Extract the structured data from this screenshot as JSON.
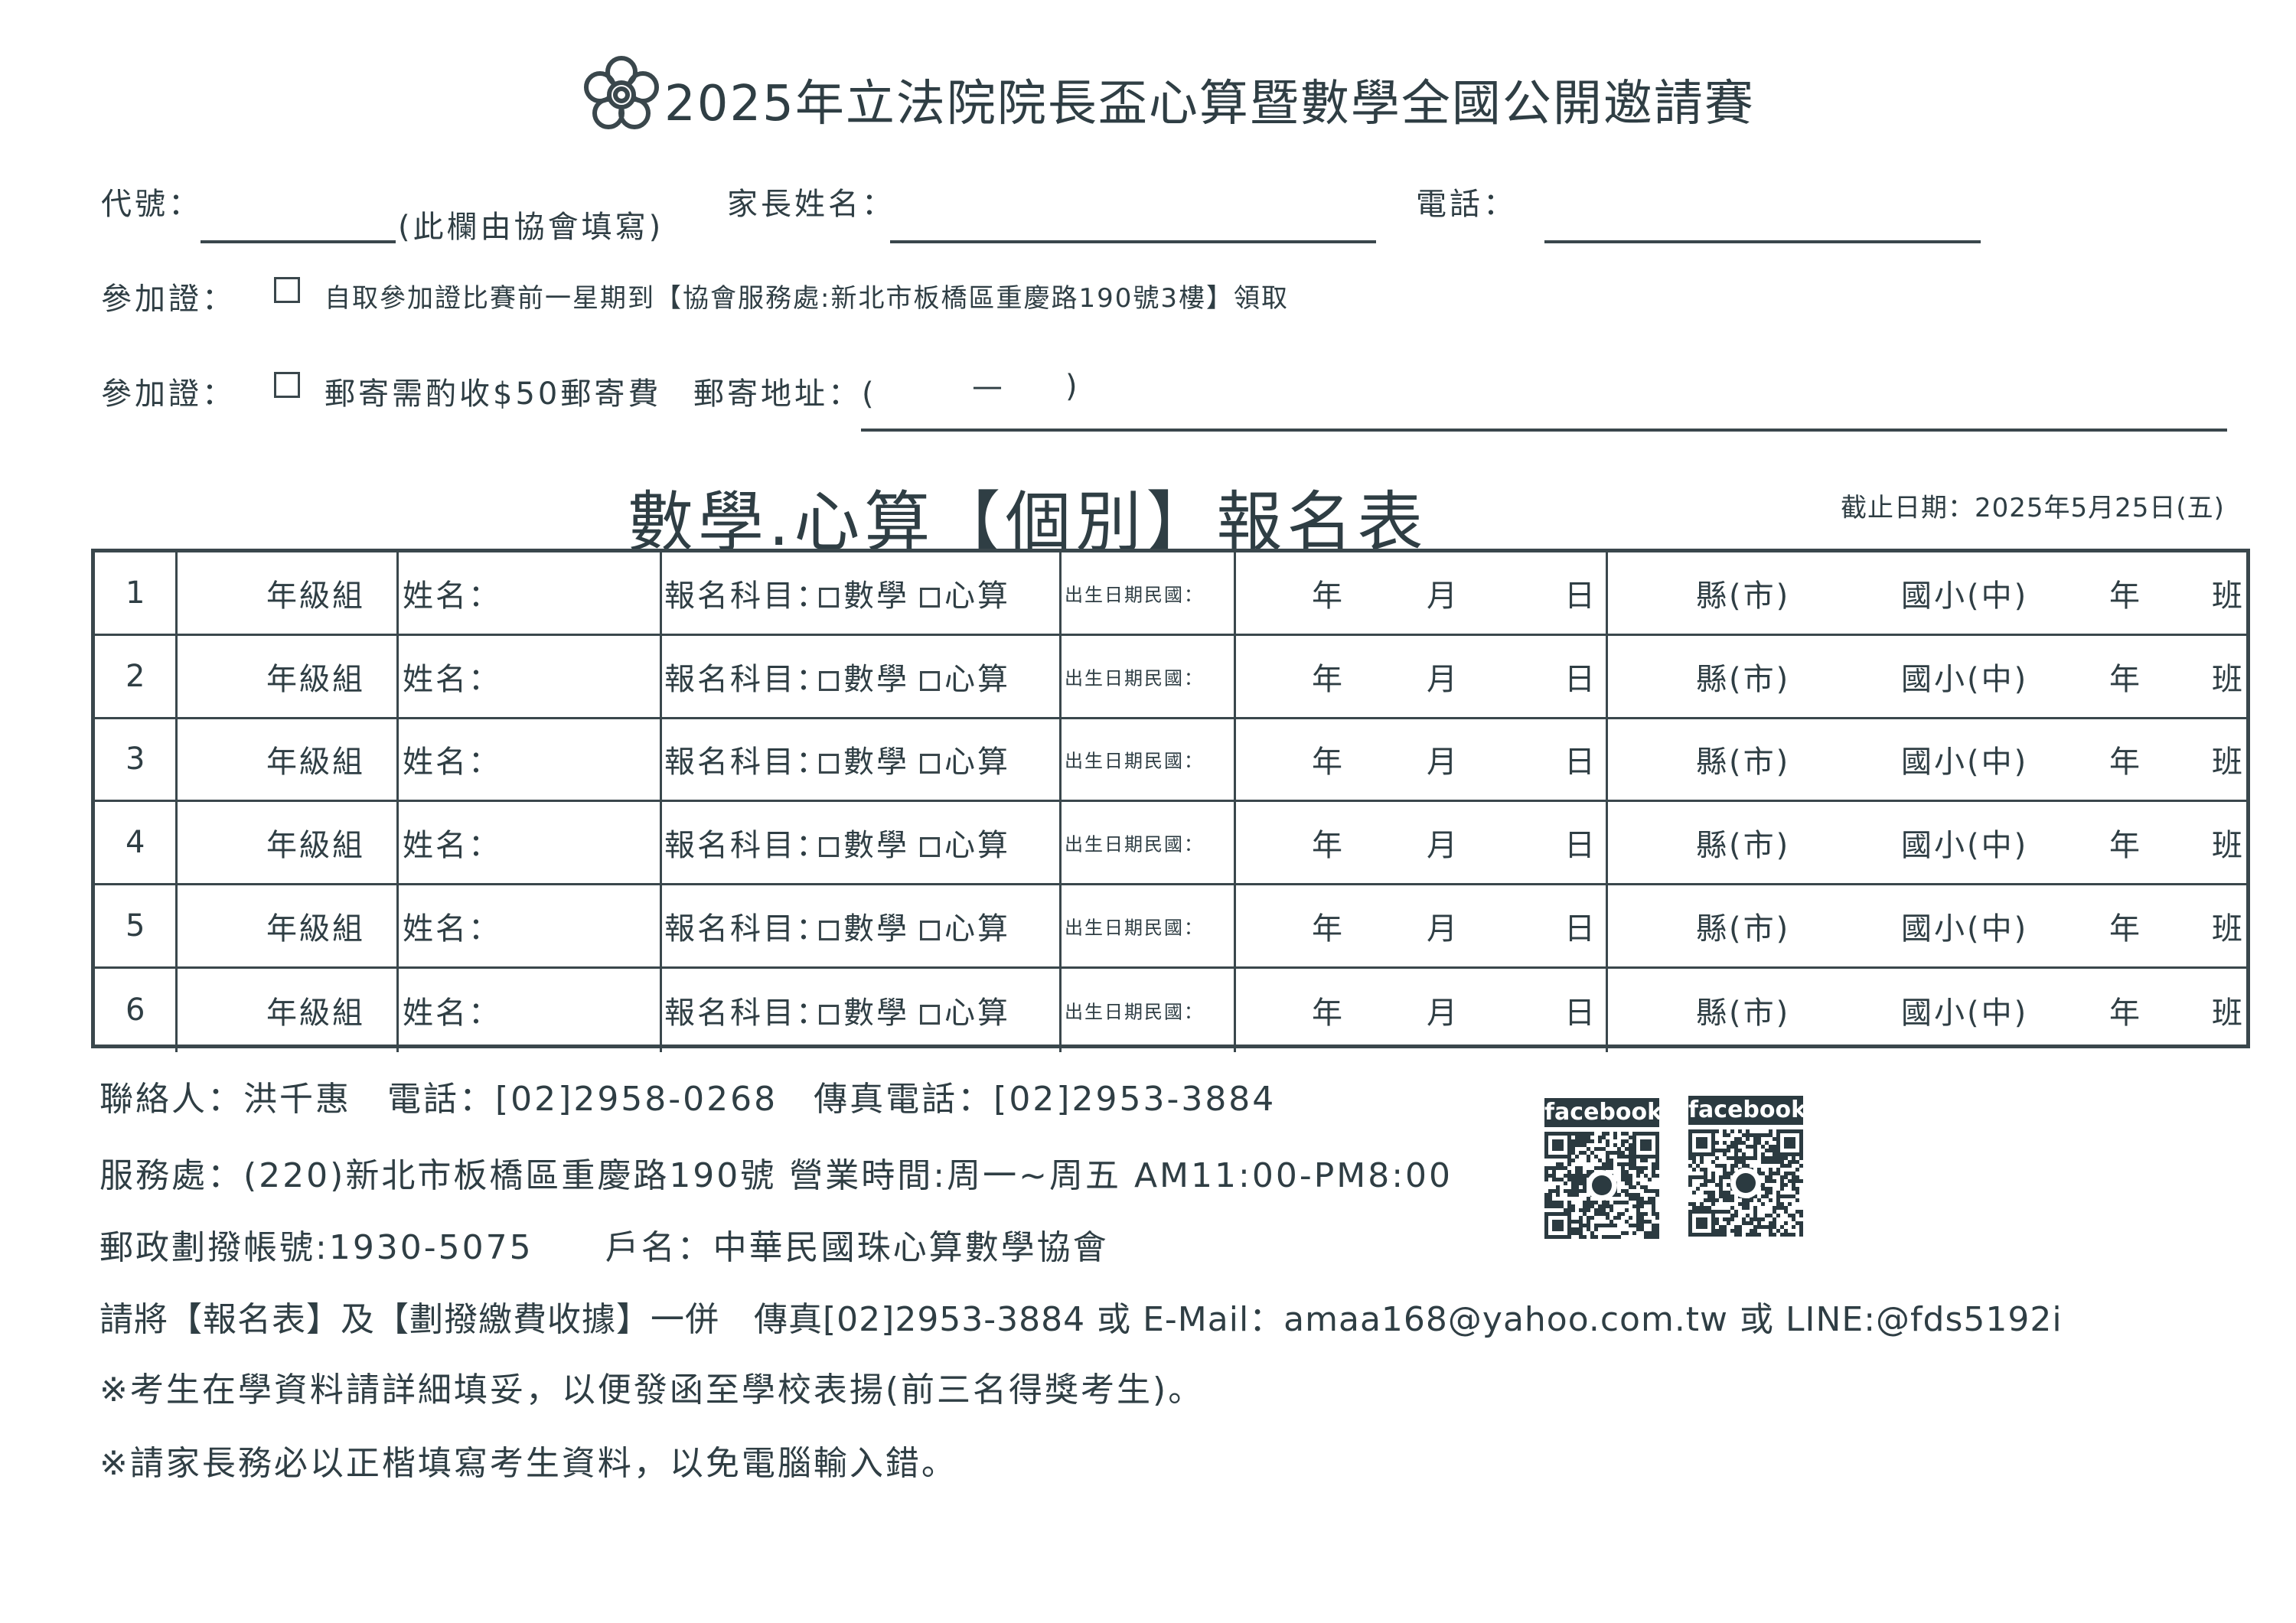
{
  "header": {
    "logo_icon": "plum-blossom-logo",
    "title": "2025年立法院院長盃心算暨數學全國公開邀請賽"
  },
  "fields": {
    "code_label": "代號：",
    "code_note": "(此欄由協會填寫)",
    "parent_label": "家長姓名：",
    "phone_label": "電話：",
    "pass_label_1": "參加證：",
    "pass_option_1": "自取參加證比賽前一星期到【協會服務處:新北市板橋區重慶路190號3樓】領取",
    "pass_label_2": "參加證：",
    "pass_option_2": "郵寄需酌收$50郵寄費",
    "mail_label": "郵寄地址：(",
    "mail_zip": "—",
    "mail_paren_close": ")"
  },
  "form": {
    "heading": "數學.心算【個別】報名表",
    "deadline": "截止日期：2025年5月25日(五)"
  },
  "table": {
    "rows": [
      {
        "no": "1"
      },
      {
        "no": "2"
      },
      {
        "no": "3"
      },
      {
        "no": "4"
      },
      {
        "no": "5"
      },
      {
        "no": "6"
      }
    ],
    "grade": "年級組",
    "name": "姓名：",
    "subject": "報名科目：",
    "math": "數學",
    "abacus": "心算",
    "birth": "出生日期民國：",
    "year": "年",
    "month": "月",
    "day": "日",
    "county": "縣(市)",
    "school": "國小(中)",
    "grade_year": "年",
    "class": "班"
  },
  "footer": {
    "contact": "聯絡人：洪千惠　電話：[02]2958-0268　傳真電話：[02]2953-3884",
    "office": "服務處：(220)新北市板橋區重慶路190號 營業時間:周一~周五 AM11:00-PM8:00",
    "account": "郵政劃撥帳號:1930-5075　　戶名：中華民國珠心算數學協會",
    "submit": "請將【報名表】及【劃撥繳費收據】一併　傳真[02]2953-3884 或 E-Mail：amaa168@yahoo.com.tw 或 LINE:@fds5192i",
    "note1": "※考生在學資料請詳細填妥，以便發函至學校表揚(前三名得獎考生)。",
    "note2": "※請家長務必以正楷填寫考生資料，以免電腦輸入錯。"
  },
  "qr": [
    {
      "label": "facebook",
      "icon": "qr-code"
    },
    {
      "label": "facebook",
      "icon": "qr-code"
    }
  ],
  "colors": {
    "ink": "#2f3e44"
  }
}
